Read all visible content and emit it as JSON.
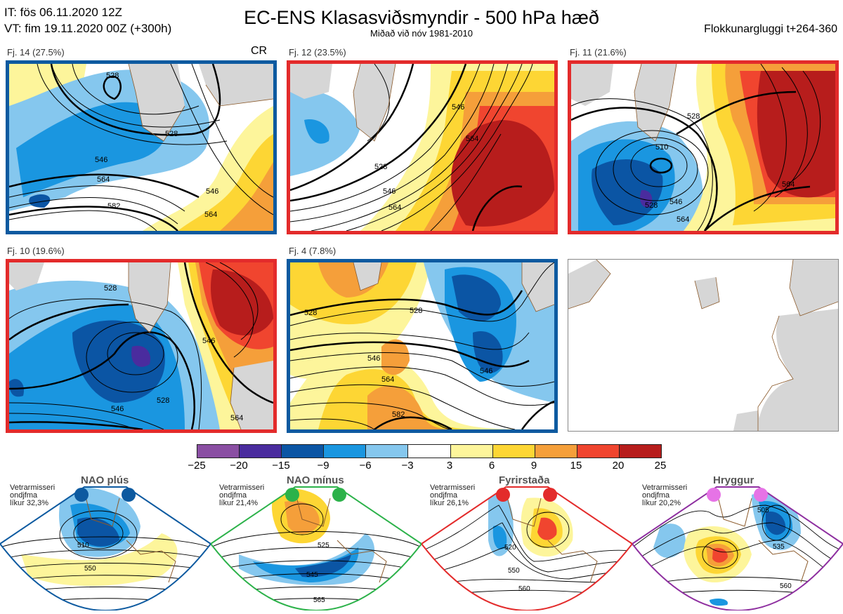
{
  "header": {
    "it": "IT: fös 06.11.2020 12Z",
    "vt": "VT: fim 19.11.2020 00Z  (+300h)",
    "title": "EC-ENS Klasasviðsmyndir - 500 hPa hæð",
    "subtitle": "Miðað við nóv 1981-2010",
    "window": "Flokkunargluggi t+264-360"
  },
  "panels": [
    {
      "label": "Fj. 14 (27.5%)",
      "extra": "CR",
      "border": "#0d5aa0",
      "contours": [
        "528",
        "546",
        "564",
        "582",
        "564",
        "546",
        "528"
      ]
    },
    {
      "label": "Fj. 12 (23.5%)",
      "border": "#e32b2b",
      "contours": [
        "528",
        "546",
        "564",
        "546",
        "564"
      ]
    },
    {
      "label": "Fj. 11 (21.6%)",
      "border": "#e32b2b",
      "contours": [
        "510",
        "528",
        "546",
        "564",
        "528",
        "564"
      ]
    },
    {
      "label": "Fj. 10 (19.6%)",
      "border": "#e32b2b",
      "contours": [
        "528",
        "546",
        "528",
        "564",
        "546"
      ]
    },
    {
      "label": "Fj. 4 (7.8%)",
      "border": "#0d5aa0",
      "contours": [
        "528",
        "546",
        "564",
        "582",
        "528",
        "546"
      ]
    }
  ],
  "colorbar": {
    "colors": [
      "#8a4fa3",
      "#4a2c9e",
      "#0b55a4",
      "#1a96e0",
      "#85c7ee",
      "#ffffff",
      "#fdf59b",
      "#fdd634",
      "#f59f3a",
      "#f0452f",
      "#b71d1c"
    ],
    "ticks": [
      "−25",
      "−20",
      "−15",
      "−9",
      "−6",
      "−3",
      "3",
      "6",
      "9",
      "15",
      "20",
      "25"
    ]
  },
  "regimes": [
    {
      "title": "NAO plús",
      "desc": "Vetrarmisseri\nondjfma\nlíkur 32,3%",
      "dot": "#0d5aa0",
      "border": "#0d5aa0",
      "contours": [
        "510",
        "550"
      ]
    },
    {
      "title": "NAO mínus",
      "desc": "Vetrarmisseri\nondjfma\nlíkur 21,4%",
      "dot": "#2cb24a",
      "border": "#2cb24a",
      "contours": [
        "525",
        "545",
        "565"
      ]
    },
    {
      "title": "Fyrirstaða",
      "desc": "Vetrarmisseri\nondjfma\nlíkur 26,1%",
      "dot": "#e32b2b",
      "border": "#e32b2b",
      "contours": [
        "520",
        "550",
        "560"
      ]
    },
    {
      "title": "Hryggur",
      "desc": "Vetrarmisseri\nondjfma\nlíkur 20,2%",
      "dot": "#e673e6",
      "border": "#8e2fa0",
      "contours": [
        "505",
        "535",
        "560"
      ]
    }
  ]
}
